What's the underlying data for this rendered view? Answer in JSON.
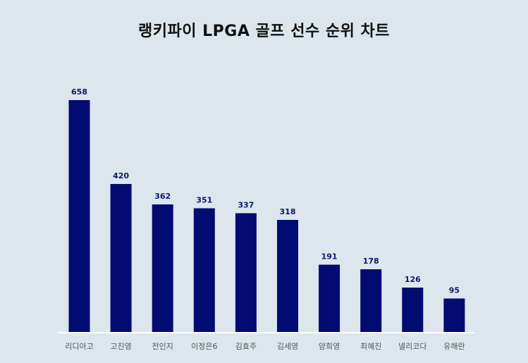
{
  "chart_data": {
    "type": "bar",
    "title": "랭키파이 LPGA 골프 선수 순위 차트",
    "categories": [
      "리디아고",
      "고진영",
      "전인지",
      "이정은6",
      "김효주",
      "김세영",
      "양희영",
      "최혜진",
      "넬리코다",
      "유해란"
    ],
    "values": [
      658,
      420,
      362,
      351,
      337,
      318,
      191,
      178,
      126,
      95
    ],
    "xlabel": "",
    "ylabel": "",
    "ylim": [
      0,
      700
    ],
    "grid": false,
    "bar_color": "#020b72",
    "background": "#dce6ec"
  }
}
